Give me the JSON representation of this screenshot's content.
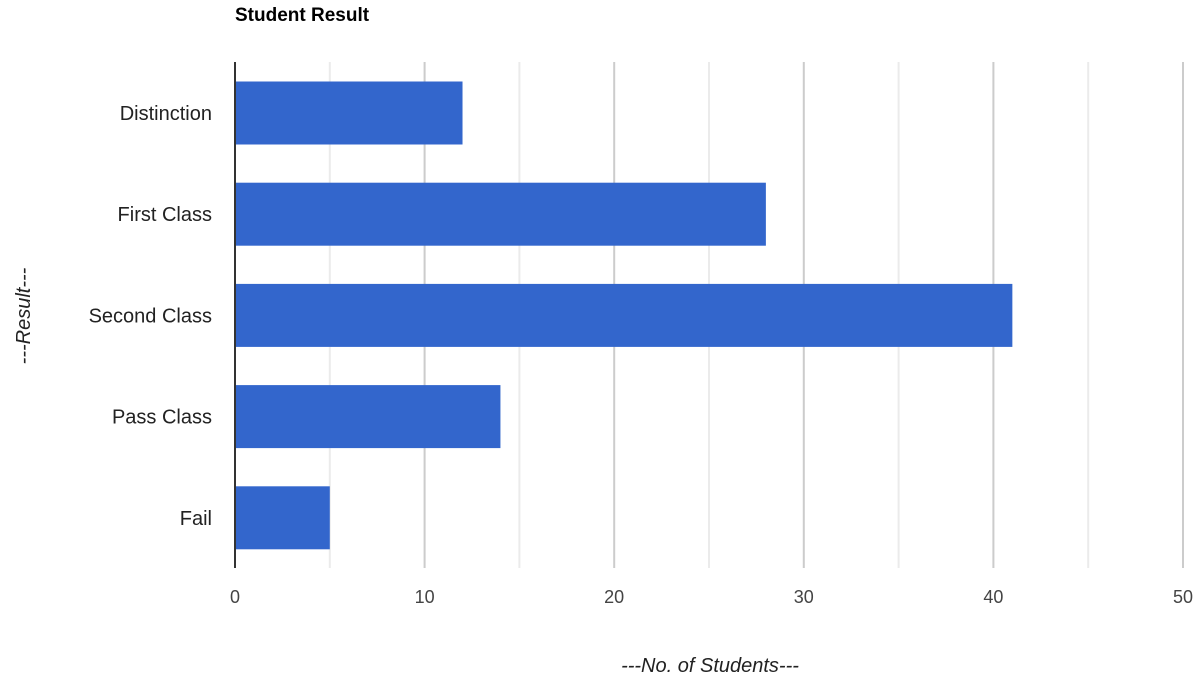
{
  "chart_data": {
    "type": "bar",
    "orientation": "horizontal",
    "title": "Student Result",
    "categories": [
      "Distinction",
      "First Class",
      "Second Class",
      "Pass Class",
      "Fail"
    ],
    "values": [
      12,
      28,
      41,
      14,
      5
    ],
    "xlabel": "---No. of Students---",
    "ylabel": "---Result---",
    "xlim": [
      0,
      50
    ],
    "x_ticks": [
      "0",
      "10",
      "20",
      "30",
      "40",
      "50"
    ],
    "x_tick_values": [
      0,
      10,
      20,
      30,
      40,
      50
    ],
    "minor_gridline_values": [
      5,
      15,
      25,
      35,
      45
    ],
    "grid": true,
    "legend": "none",
    "colors": {
      "bar": "#3366cc",
      "major_grid": "#cccccc",
      "minor_grid": "#ebebeb",
      "baseline": "#333333"
    }
  }
}
